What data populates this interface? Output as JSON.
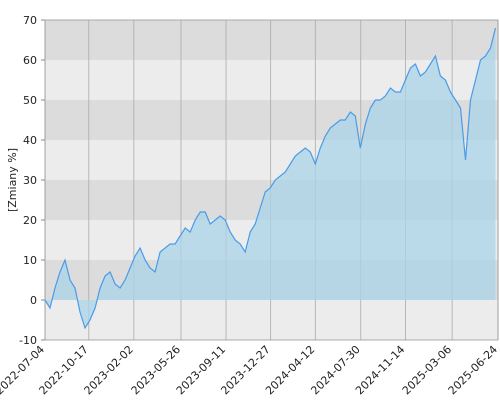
{
  "chart_data": {
    "type": "area",
    "y_label": "[Zmiany %]",
    "x": [
      "2022-07-04",
      "2022-07-16",
      "2022-07-28",
      "2022-08-09",
      "2022-08-21",
      "2022-09-02",
      "2022-09-14",
      "2022-09-26",
      "2022-10-08",
      "2022-10-20",
      "2022-11-01",
      "2022-11-13",
      "2022-11-25",
      "2022-12-07",
      "2022-12-19",
      "2022-12-31",
      "2023-01-12",
      "2023-01-24",
      "2023-02-05",
      "2023-02-17",
      "2023-03-01",
      "2023-03-13",
      "2023-03-25",
      "2023-04-06",
      "2023-04-18",
      "2023-04-30",
      "2023-05-12",
      "2023-05-24",
      "2023-06-05",
      "2023-06-17",
      "2023-06-29",
      "2023-07-11",
      "2023-07-23",
      "2023-08-04",
      "2023-08-16",
      "2023-08-28",
      "2023-09-09",
      "2023-09-21",
      "2023-10-03",
      "2023-10-15",
      "2023-10-27",
      "2023-11-08",
      "2023-11-20",
      "2023-12-02",
      "2023-12-14",
      "2023-12-26",
      "2024-01-07",
      "2024-01-19",
      "2024-01-31",
      "2024-02-12",
      "2024-02-24",
      "2024-03-07",
      "2024-03-19",
      "2024-03-31",
      "2024-04-12",
      "2024-04-24",
      "2024-05-06",
      "2024-05-18",
      "2024-05-30",
      "2024-06-11",
      "2024-06-23",
      "2024-07-05",
      "2024-07-17",
      "2024-07-29",
      "2024-08-10",
      "2024-08-22",
      "2024-09-03",
      "2024-09-15",
      "2024-09-27",
      "2024-10-09",
      "2024-10-21",
      "2024-11-02",
      "2024-11-14",
      "2024-11-26",
      "2024-12-08",
      "2024-12-20",
      "2025-01-01",
      "2025-01-13",
      "2025-01-25",
      "2025-02-06",
      "2025-02-18",
      "2025-03-02",
      "2025-03-14",
      "2025-03-26",
      "2025-04-07",
      "2025-04-19",
      "2025-05-01",
      "2025-05-13",
      "2025-05-25",
      "2025-06-06",
      "2025-06-18"
    ],
    "series": [
      {
        "color": "#4a9be8",
        "fill": "#a9d4ea",
        "values": [
          0,
          -2,
          3,
          7,
          10,
          5,
          3,
          -3,
          -7,
          -5,
          -2,
          3,
          6,
          7,
          4,
          3,
          5,
          8,
          11,
          13,
          10,
          8,
          7,
          12,
          13,
          14,
          14,
          16,
          18,
          17,
          20,
          22,
          22,
          19,
          20,
          21,
          20,
          17,
          15,
          14,
          12,
          17,
          19,
          23,
          27,
          28,
          30,
          31,
          32,
          34,
          36,
          37,
          38,
          37,
          34,
          38,
          41,
          43,
          44,
          45,
          45,
          47,
          46,
          38,
          44,
          48,
          50,
          50,
          51,
          53,
          52,
          52,
          55,
          58,
          59,
          56,
          57,
          59,
          61,
          56,
          55,
          52,
          50,
          48,
          35,
          50,
          55,
          60,
          61,
          63,
          68
        ]
      }
    ],
    "xlim": [
      "2022-07-04",
      "2025-06-24"
    ],
    "xticks": [
      "2022-07-04",
      "2022-10-17",
      "2023-02-02",
      "2023-05-26",
      "2023-09-11",
      "2023-12-27",
      "2024-04-12",
      "2024-07-30",
      "2024-11-14",
      "2025-03-06",
      "2025-06-24"
    ],
    "ylim": [
      -10,
      70
    ],
    "yticks": [
      -10,
      0,
      10,
      20,
      30,
      40,
      50,
      60,
      70
    ],
    "band_colors": [
      "#ececec",
      "#dcdcdc"
    ],
    "grid": true
  }
}
